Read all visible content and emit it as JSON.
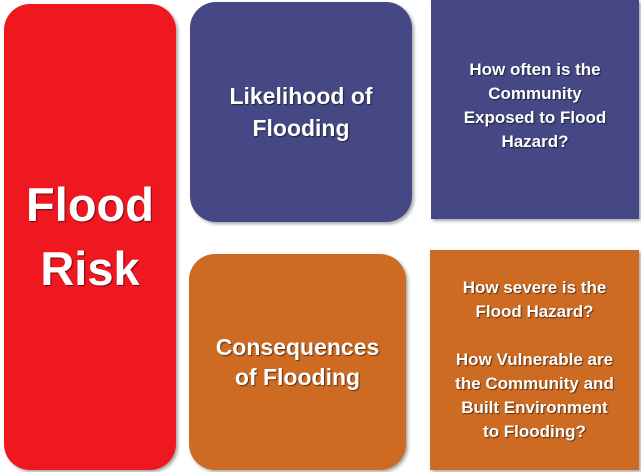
{
  "diagram": {
    "flood_risk": "Flood\nRisk",
    "likelihood": "Likelihood of\nFlooding",
    "consequences": "Consequences\nof Flooding",
    "likelihood_question": "How often is the\nCommunity\nExposed to Flood\nHazard?",
    "severity_question": "How severe is the\nFlood Hazard?",
    "vulnerability_question": "How Vulnerable are\nthe Community and\nBuilt Environment\nto Flooding?"
  },
  "colors": {
    "flood_risk_red": "#ef1720",
    "likelihood_blue": "#454884",
    "consequences_orange": "#cd6b22"
  }
}
